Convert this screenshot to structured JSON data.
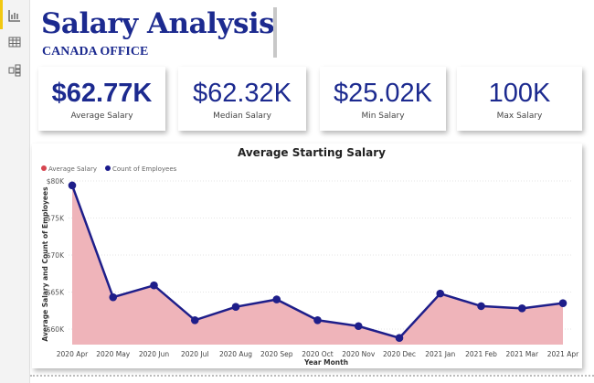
{
  "sidebar": {
    "items": [
      {
        "icon": "report-icon"
      },
      {
        "icon": "table-icon"
      },
      {
        "icon": "model-icon"
      }
    ],
    "accent": "#f2c811"
  },
  "header": {
    "title": "Salary Analysis",
    "subtitle": "CANADA OFFICE"
  },
  "kpis": [
    {
      "value": "$62.77K",
      "label": "Average Salary"
    },
    {
      "value": "$62.32K",
      "label": "Median Salary"
    },
    {
      "value": "$25.02K",
      "label": "Min Salary"
    },
    {
      "value": "100K",
      "label": "Max Salary"
    }
  ],
  "chart_data": {
    "type": "area",
    "title": "Average Starting Salary",
    "xlabel": "Year Month",
    "ylabel": "Average Salary and Count of Employees",
    "legend": [
      {
        "name": "Average Salary",
        "color": "#d64550"
      },
      {
        "name": "Count of Employees",
        "color": "#1a1a8c"
      }
    ],
    "legend_position": "top-left",
    "categories": [
      "2020 Apr",
      "2020 May",
      "2020 Jun",
      "2020 Jul",
      "2020 Aug",
      "2020 Sep",
      "2020 Oct",
      "2020 Nov",
      "2020 Dec",
      "2021 Jan",
      "2021 Feb",
      "2021 Mar",
      "2021 Apr"
    ],
    "values": [
      79400,
      64300,
      65900,
      61200,
      63000,
      64000,
      61200,
      60400,
      58800,
      64800,
      63100,
      62800,
      63500
    ],
    "yticks": [
      "$60K",
      "$65K",
      "$70K",
      "$75K",
      "$80K"
    ],
    "ytick_values": [
      60000,
      65000,
      70000,
      75000,
      80000
    ],
    "ylim": [
      57900,
      80600
    ],
    "grid": true,
    "area_color": "#efb4ba",
    "line_color": "#1e1e8a"
  }
}
